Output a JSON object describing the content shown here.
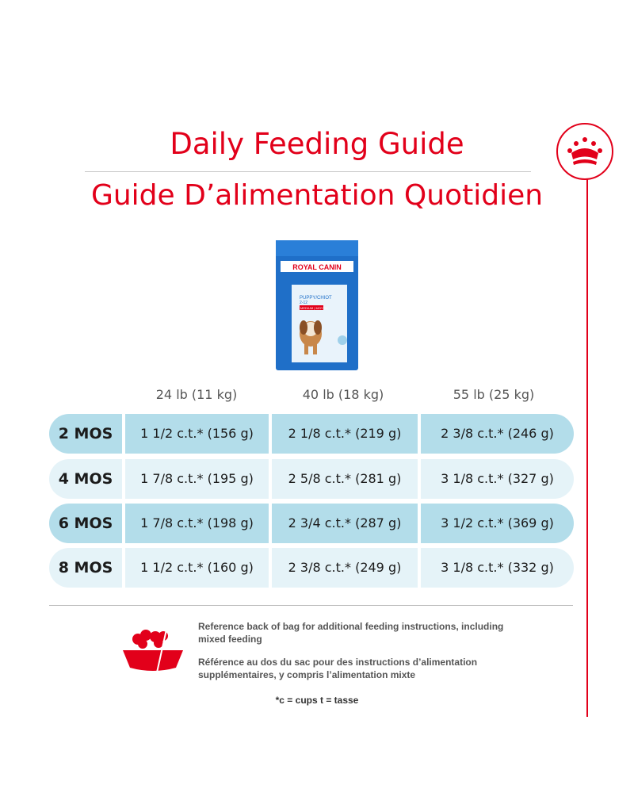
{
  "title_en": "Daily Feeding Guide",
  "title_fr": "Guide D’alimentation Quotidien",
  "product": {
    "brand": "ROYAL CANIN",
    "name": "PUPPY/CHIOT",
    "subtitle": "2-12",
    "size": "MEDIUM | MOYEN"
  },
  "columns": [
    "24 lb (11 kg)",
    "40 lb (18 kg)",
    "55 lb (25 kg)"
  ],
  "rows": [
    {
      "age": "2 MOS",
      "values": [
        "1 1/2 c.t.* (156 g)",
        "2 1/8 c.t.* (219 g)",
        "2 3/8 c.t.* (246 g)"
      ]
    },
    {
      "age": "4 MOS",
      "values": [
        "1 7/8 c.t.* (195 g)",
        "2 5/8 c.t.* (281 g)",
        "3 1/8 c.t.* (327 g)"
      ]
    },
    {
      "age": "6 MOS",
      "values": [
        "1 7/8 c.t.* (198 g)",
        "2 3/4 c.t.* (287 g)",
        "3 1/2 c.t.* (369 g)"
      ]
    },
    {
      "age": "8 MOS",
      "values": [
        "1 1/2 c.t.* (160 g)",
        "2 3/8 c.t.* (249 g)",
        "3 1/8 c.t.* (332 g)"
      ]
    }
  ],
  "note_en": "Reference back of bag for additional feeding instructions, including mixed feeding",
  "note_fr": "Référence au dos du sac pour des instructions d’alimentation supplémentaires, y compris l’alimentation mixte",
  "footnote": "*c = cups t = tasse",
  "colors": {
    "brand_red": "#e2001a",
    "row_dark": "#b3ddea",
    "row_light": "#e5f3f8"
  }
}
